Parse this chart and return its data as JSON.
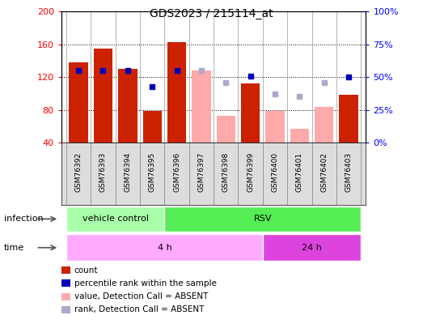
{
  "title": "GDS2023 / 215114_at",
  "samples": [
    "GSM76392",
    "GSM76393",
    "GSM76394",
    "GSM76395",
    "GSM76396",
    "GSM76397",
    "GSM76398",
    "GSM76399",
    "GSM76400",
    "GSM76401",
    "GSM76402",
    "GSM76403"
  ],
  "ylim_left": [
    40,
    200
  ],
  "ylim_right": [
    0,
    100
  ],
  "yticks_left": [
    40,
    80,
    120,
    160,
    200
  ],
  "yticks_right": [
    0,
    25,
    50,
    75,
    100
  ],
  "count_values": [
    138,
    155,
    130,
    79,
    163,
    null,
    null,
    112,
    null,
    null,
    null,
    98
  ],
  "rank_pct": [
    55,
    55,
    55,
    43,
    55,
    null,
    null,
    51,
    null,
    null,
    null,
    50
  ],
  "absent_value": [
    null,
    null,
    null,
    null,
    null,
    128,
    73,
    null,
    79,
    57,
    84,
    null
  ],
  "absent_rank_pct": [
    null,
    null,
    null,
    null,
    null,
    55,
    46,
    null,
    37,
    35,
    46,
    null
  ],
  "bar_width": 0.35,
  "count_color": "#cc2200",
  "rank_color": "#0000bb",
  "absent_value_color": "#ffaaaa",
  "absent_rank_color": "#aaaacc",
  "infection_labels": [
    "vehicle control",
    "RSV"
  ],
  "infection_colors": [
    "#aaffaa",
    "#55ee55"
  ],
  "infection_split": 4,
  "time_labels": [
    "4 h",
    "24 h"
  ],
  "time_colors": [
    "#ffaaff",
    "#dd44dd"
  ],
  "time_split": 8,
  "legend_items": [
    {
      "label": "count",
      "color": "#cc2200"
    },
    {
      "label": "percentile rank within the sample",
      "color": "#0000bb"
    },
    {
      "label": "value, Detection Call = ABSENT",
      "color": "#ffaaaa"
    },
    {
      "label": "rank, Detection Call = ABSENT",
      "color": "#aaaacc"
    }
  ]
}
